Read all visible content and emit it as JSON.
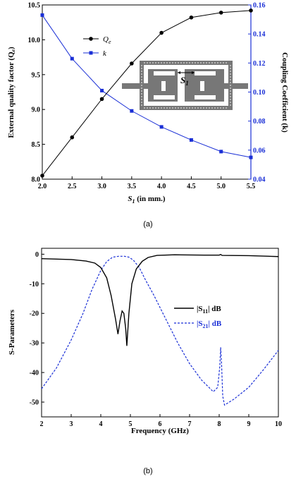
{
  "captions": {
    "a": "(a)",
    "b": "(b)"
  },
  "colors": {
    "qe": "#000000",
    "k": "#1a2fd6",
    "s11": "#000000",
    "s21": "#1a2fd6",
    "resonator": "#777777"
  },
  "inset": {
    "label": "S",
    "label_sub": "1"
  },
  "chart_data": [
    {
      "type": "line",
      "x": [
        2.0,
        2.5,
        3.0,
        3.5,
        4.0,
        4.5,
        5.0,
        5.5
      ],
      "xlabel": "S",
      "xlabel_sub": "1",
      "xlabel_rest": " (in mm.)",
      "xlim": [
        2.0,
        5.5
      ],
      "xticks": [
        "2.0",
        "2.5",
        "3.0",
        "3.5",
        "4.0",
        "4.5",
        "5.0",
        "5.5"
      ],
      "ylabel_left": "External quality factor (Q",
      "ylabel_left_sub": "e",
      "ylabel_left_end": ")",
      "ylim_left": [
        8.0,
        10.5
      ],
      "yticks_left": [
        "8.0",
        "8.5",
        "9.0",
        "9.5",
        "10.0",
        "10.5"
      ],
      "ylabel_right": "Coupling Coefficient (k)",
      "ylim_right": [
        0.04,
        0.16
      ],
      "yticks_right": [
        "0.04",
        "0.06",
        "0.08",
        "0.10",
        "0.12",
        "0.14",
        "0.16"
      ],
      "series": [
        {
          "name": "Q",
          "name_sub": "e",
          "axis": "left",
          "marker": "circle",
          "values": [
            8.05,
            8.6,
            9.15,
            9.66,
            10.1,
            10.32,
            10.39,
            10.42
          ]
        },
        {
          "name": "k",
          "axis": "right",
          "marker": "square",
          "values": [
            0.153,
            0.123,
            0.101,
            0.087,
            0.076,
            0.067,
            0.059,
            0.055
          ]
        }
      ]
    },
    {
      "type": "line",
      "xlabel": "Frequency (GHz)",
      "xlim": [
        2,
        10
      ],
      "xticks": [
        "2",
        "3",
        "4",
        "5",
        "6",
        "7",
        "8",
        "9",
        "10"
      ],
      "ylabel": "S-Parameters",
      "ylim": [
        -55,
        2
      ],
      "yticks": [
        "0",
        "-10",
        "-20",
        "-30",
        "-40",
        "-50"
      ],
      "series": [
        {
          "name": "|S",
          "name_sub": "11",
          "name_end": "| dB",
          "style": "solid",
          "points": [
            [
              2.0,
              -1.5
            ],
            [
              3.0,
              -1.8
            ],
            [
              3.5,
              -2.3
            ],
            [
              3.8,
              -3.0
            ],
            [
              4.0,
              -4.5
            ],
            [
              4.2,
              -8.0
            ],
            [
              4.35,
              -14.0
            ],
            [
              4.5,
              -22.0
            ],
            [
              4.58,
              -27.0
            ],
            [
              4.65,
              -22.5
            ],
            [
              4.72,
              -19.2
            ],
            [
              4.78,
              -20.0
            ],
            [
              4.84,
              -25.0
            ],
            [
              4.88,
              -31.0
            ],
            [
              4.95,
              -20.0
            ],
            [
              5.05,
              -10.0
            ],
            [
              5.2,
              -5.0
            ],
            [
              5.4,
              -2.4
            ],
            [
              5.6,
              -1.1
            ],
            [
              5.9,
              -0.4
            ],
            [
              6.5,
              -0.2
            ],
            [
              7.5,
              -0.3
            ],
            [
              8.0,
              -0.3
            ],
            [
              8.05,
              -0.1
            ],
            [
              8.1,
              -0.4
            ],
            [
              9.0,
              -0.5
            ],
            [
              10.0,
              -0.8
            ]
          ]
        },
        {
          "name": "|S",
          "name_sub": "21",
          "name_end": "| dB",
          "style": "dashed",
          "points": [
            [
              2.0,
              -45.5
            ],
            [
              2.5,
              -38.5
            ],
            [
              3.0,
              -29.0
            ],
            [
              3.4,
              -20.0
            ],
            [
              3.7,
              -12.0
            ],
            [
              4.0,
              -5.5
            ],
            [
              4.2,
              -2.5
            ],
            [
              4.4,
              -1.0
            ],
            [
              4.6,
              -0.7
            ],
            [
              4.8,
              -0.7
            ],
            [
              4.95,
              -1.0
            ],
            [
              5.1,
              -2.0
            ],
            [
              5.3,
              -4.5
            ],
            [
              5.5,
              -8.5
            ],
            [
              5.8,
              -14.0
            ],
            [
              6.2,
              -22.0
            ],
            [
              6.6,
              -30.0
            ],
            [
              7.0,
              -37.0
            ],
            [
              7.4,
              -42.5
            ],
            [
              7.8,
              -46.5
            ],
            [
              7.95,
              -45.0
            ],
            [
              8.02,
              -38.0
            ],
            [
              8.05,
              -31.5
            ],
            [
              8.08,
              -37.0
            ],
            [
              8.12,
              -48.0
            ],
            [
              8.18,
              -51.0
            ],
            [
              8.5,
              -49.0
            ],
            [
              9.0,
              -45.0
            ],
            [
              9.5,
              -39.0
            ],
            [
              10.0,
              -32.5
            ]
          ]
        }
      ]
    }
  ]
}
